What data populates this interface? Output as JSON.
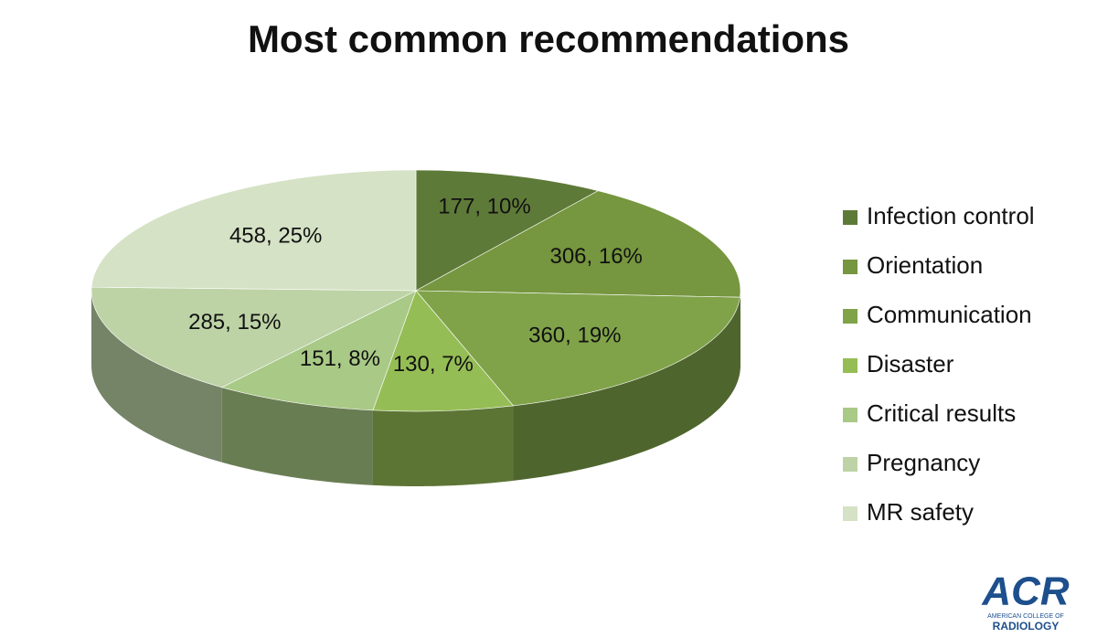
{
  "chart_data": {
    "type": "pie",
    "title": "Most common recommendations",
    "categories": [
      "Infection control",
      "Orientation",
      "Communication",
      "Disaster",
      "Critical results",
      "Pregnancy",
      "MR safety"
    ],
    "values": [
      177,
      306,
      360,
      130,
      151,
      285,
      458
    ],
    "value_labels": [
      "177, 10%",
      "306, 16%",
      "360, 19%",
      "130, 7%",
      "151, 8%",
      "285, 15%",
      "458, 25%"
    ],
    "colors": [
      "#5e7a38",
      "#76963f",
      "#80a34a",
      "#95bd55",
      "#a9c986",
      "#bdd3a6",
      "#d5e2c5"
    ],
    "legend": "right"
  },
  "logo": {
    "name": "ACR",
    "subtitle": [
      "AMERICAN COLLEGE OF",
      "RADIOLOGY"
    ]
  }
}
